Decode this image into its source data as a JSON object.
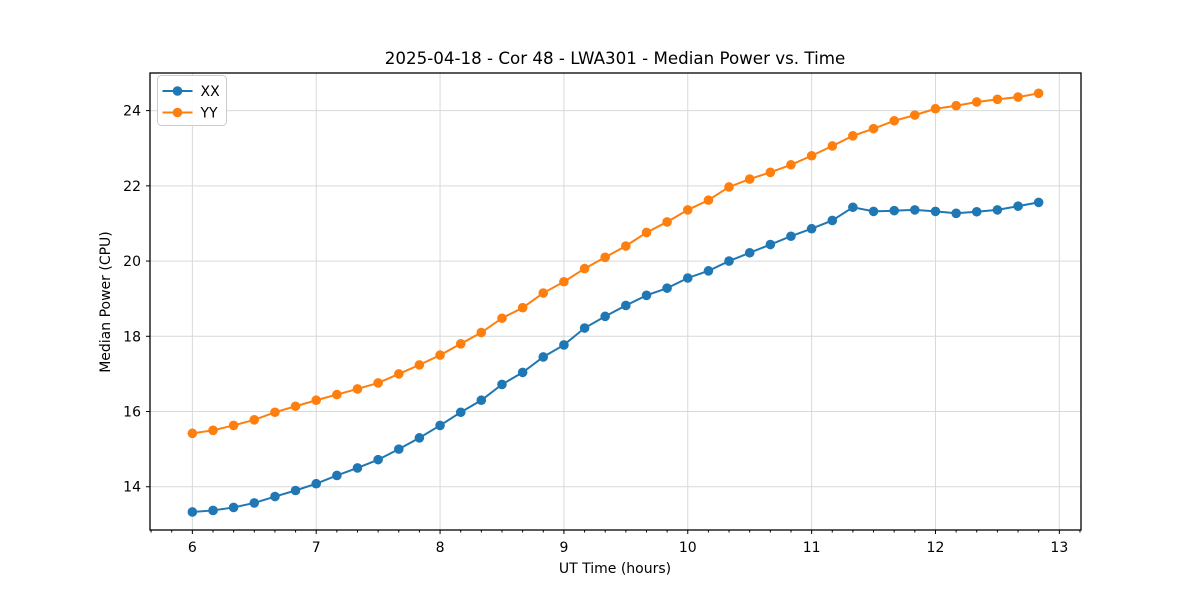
{
  "chart_data": {
    "type": "line",
    "title": "2025-04-18 - Cor 48 - LWA301 - Median Power vs. Time",
    "xlabel": "UT Time (hours)",
    "ylabel": "Median Power (CPU)",
    "xlim": [
      5.658,
      13.175
    ],
    "ylim": [
      12.85,
      25.0
    ],
    "x_ticks": [
      6,
      7,
      8,
      9,
      10,
      11,
      12,
      13
    ],
    "y_ticks": [
      14,
      16,
      18,
      20,
      22,
      24
    ],
    "x_minor_interval": 0.1667,
    "grid": true,
    "grid_color": "#d9d9d9",
    "legend_position": "upper left",
    "marker": "circle",
    "background": "#ffffff",
    "x": [
      6.0,
      6.167,
      6.333,
      6.5,
      6.667,
      6.833,
      7.0,
      7.167,
      7.333,
      7.5,
      7.667,
      7.833,
      8.0,
      8.167,
      8.333,
      8.5,
      8.667,
      8.833,
      9.0,
      9.167,
      9.333,
      9.5,
      9.667,
      9.833,
      10.0,
      10.167,
      10.333,
      10.5,
      10.667,
      10.833,
      11.0,
      11.167,
      11.333,
      11.5,
      11.667,
      11.833,
      12.0,
      12.167,
      12.333,
      12.5,
      12.667,
      12.833
    ],
    "series": [
      {
        "name": "XX",
        "color": "#1f77b4",
        "values": [
          13.33,
          13.37,
          13.45,
          13.57,
          13.74,
          13.9,
          14.08,
          14.3,
          14.5,
          14.72,
          15.0,
          15.3,
          15.63,
          15.98,
          16.3,
          16.72,
          17.04,
          17.45,
          17.77,
          18.22,
          18.53,
          18.82,
          19.09,
          19.28,
          19.55,
          19.74,
          20.0,
          20.22,
          20.44,
          20.66,
          20.86,
          21.08,
          21.43,
          21.32,
          21.34,
          21.36,
          21.32,
          21.27,
          21.31,
          21.36,
          21.46,
          21.56
        ]
      },
      {
        "name": "YY",
        "color": "#ff7f0e",
        "values": [
          15.42,
          15.5,
          15.63,
          15.78,
          15.98,
          16.14,
          16.3,
          16.45,
          16.6,
          16.76,
          17.0,
          17.24,
          17.5,
          17.8,
          18.1,
          18.48,
          18.76,
          19.15,
          19.45,
          19.8,
          20.1,
          20.4,
          20.76,
          21.04,
          21.36,
          21.62,
          21.97,
          22.18,
          22.36,
          22.56,
          22.8,
          23.06,
          23.33,
          23.52,
          23.73,
          23.88,
          24.05,
          24.13,
          24.23,
          24.3,
          24.36,
          24.46
        ]
      }
    ]
  }
}
